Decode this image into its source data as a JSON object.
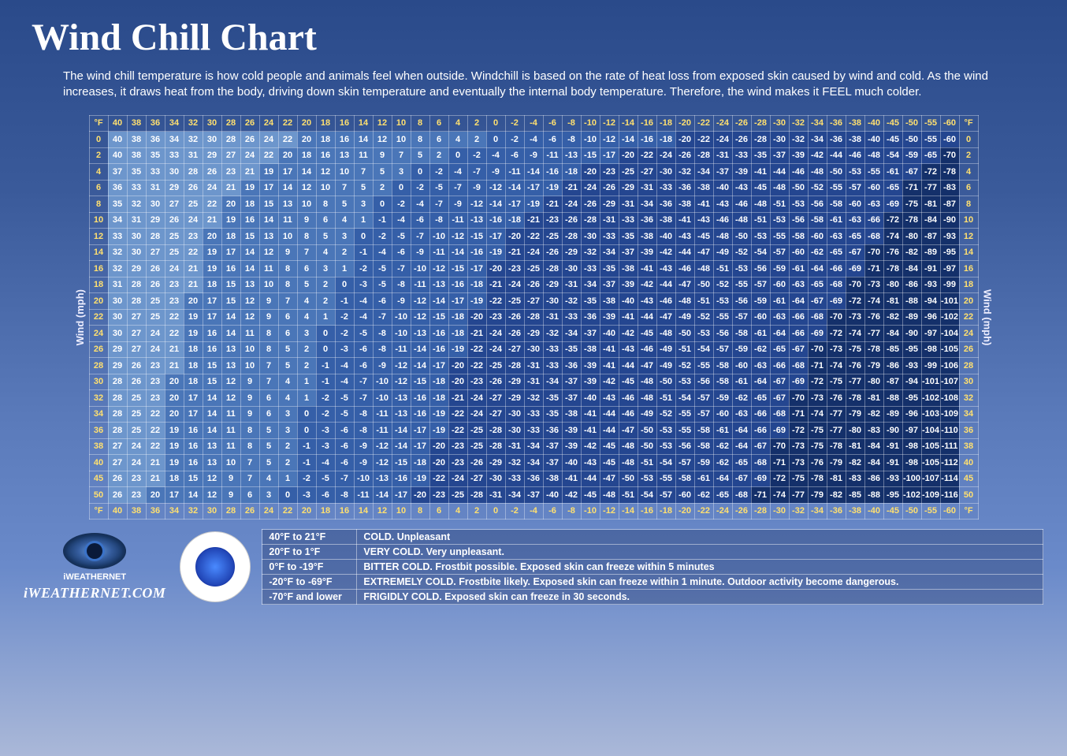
{
  "title": "Wind Chill Chart",
  "description": "The wind chill temperature is how cold people and animals feel when outside. Windchill is based on the rate of heat loss from exposed skin caused by wind and cold. As the wind increases, it draws heat from the body, driving down skin temperature and eventually the internal body temperature. Therefore, the wind makes it FEEL much colder.",
  "axis_wind_label": "Wind (mph)",
  "unit_label": "°F",
  "temps_header": [
    40,
    38,
    36,
    34,
    32,
    30,
    28,
    26,
    24,
    22,
    20,
    18,
    16,
    14,
    12,
    10,
    8,
    6,
    4,
    2,
    0,
    -2,
    -4,
    -6,
    -8,
    -10,
    -12,
    -14,
    -16,
    -18,
    -20,
    -22,
    -24,
    -26,
    -28,
    -30,
    -32,
    -34,
    -36,
    -38,
    -40,
    -45,
    -50,
    -55,
    -60
  ],
  "wind_speeds": [
    0,
    2,
    4,
    6,
    8,
    10,
    12,
    14,
    16,
    18,
    20,
    22,
    24,
    26,
    28,
    30,
    32,
    34,
    36,
    38,
    40,
    45,
    50
  ],
  "rows": [
    [
      40,
      38,
      36,
      34,
      32,
      30,
      28,
      26,
      24,
      22,
      20,
      18,
      16,
      14,
      12,
      10,
      8,
      6,
      4,
      2,
      0,
      -2,
      -4,
      -6,
      -8,
      -10,
      -12,
      -14,
      -16,
      -18,
      -20,
      -22,
      -24,
      -26,
      -28,
      -30,
      -32,
      -34,
      -36,
      -38,
      -40,
      -45,
      -50,
      -55,
      -60
    ],
    [
      40,
      38,
      35,
      33,
      31,
      29,
      27,
      24,
      22,
      20,
      18,
      16,
      13,
      11,
      9,
      7,
      5,
      2,
      0,
      -2,
      -4,
      -6,
      -9,
      -11,
      -13,
      -15,
      -17,
      -20,
      -22,
      -24,
      -26,
      -28,
      -31,
      -33,
      -35,
      -37,
      -39,
      -42,
      -44,
      -46,
      -48,
      -54,
      -59,
      -65,
      -70
    ],
    [
      37,
      35,
      33,
      30,
      28,
      26,
      23,
      21,
      19,
      17,
      14,
      12,
      10,
      7,
      5,
      3,
      0,
      -2,
      -4,
      -7,
      -9,
      -11,
      -14,
      -16,
      -18,
      -20,
      -23,
      -25,
      -27,
      -30,
      -32,
      -34,
      -37,
      -39,
      -41,
      -44,
      -46,
      -48,
      -50,
      -53,
      -55,
      -61,
      -67,
      -72,
      -78
    ],
    [
      36,
      33,
      31,
      29,
      26,
      24,
      21,
      19,
      17,
      14,
      12,
      10,
      7,
      5,
      2,
      0,
      -2,
      -5,
      -7,
      -9,
      -12,
      -14,
      -17,
      -19,
      -21,
      -24,
      -26,
      -29,
      -31,
      -33,
      -36,
      -38,
      -40,
      -43,
      -45,
      -48,
      -50,
      -52,
      -55,
      -57,
      -60,
      -65,
      -71,
      -77,
      -83
    ],
    [
      35,
      32,
      30,
      27,
      25,
      22,
      20,
      18,
      15,
      13,
      10,
      8,
      5,
      3,
      0,
      -2,
      -4,
      -7,
      -9,
      -12,
      -14,
      -17,
      -19,
      -21,
      -24,
      -26,
      -29,
      -31,
      -34,
      -36,
      -38,
      -41,
      -43,
      -46,
      -48,
      -51,
      -53,
      -56,
      -58,
      -60,
      -63,
      -69,
      -75,
      -81,
      -87
    ],
    [
      34,
      31,
      29,
      26,
      24,
      21,
      19,
      16,
      14,
      11,
      9,
      6,
      4,
      1,
      -1,
      -4,
      -6,
      -8,
      -11,
      -13,
      -16,
      -18,
      -21,
      -23,
      -26,
      -28,
      -31,
      -33,
      -36,
      -38,
      -41,
      -43,
      -46,
      -48,
      -51,
      -53,
      -56,
      -58,
      -61,
      -63,
      -66,
      -72,
      -78,
      -84,
      -90
    ],
    [
      33,
      30,
      28,
      25,
      23,
      20,
      18,
      15,
      13,
      10,
      8,
      5,
      3,
      0,
      -2,
      -5,
      -7,
      -10,
      -12,
      -15,
      -17,
      -20,
      -22,
      -25,
      -28,
      -30,
      -33,
      -35,
      -38,
      -40,
      -43,
      -45,
      -48,
      -50,
      -53,
      -55,
      -58,
      -60,
      -63,
      -65,
      -68,
      -74,
      -80,
      -87,
      -93
    ],
    [
      32,
      30,
      27,
      25,
      22,
      19,
      17,
      14,
      12,
      9,
      7,
      4,
      2,
      -1,
      -4,
      -6,
      -9,
      -11,
      -14,
      -16,
      -19,
      -21,
      -24,
      -26,
      -29,
      -32,
      -34,
      -37,
      -39,
      -42,
      -44,
      -47,
      -49,
      -52,
      -54,
      -57,
      -60,
      -62,
      -65,
      -67,
      -70,
      -76,
      -82,
      -89,
      -95
    ],
    [
      32,
      29,
      26,
      24,
      21,
      19,
      16,
      14,
      11,
      8,
      6,
      3,
      1,
      -2,
      -5,
      -7,
      -10,
      -12,
      -15,
      -17,
      -20,
      -23,
      -25,
      -28,
      -30,
      -33,
      -35,
      -38,
      -41,
      -43,
      -46,
      -48,
      -51,
      -53,
      -56,
      -59,
      -61,
      -64,
      -66,
      -69,
      -71,
      -78,
      -84,
      -91,
      -97
    ],
    [
      31,
      28,
      26,
      23,
      21,
      18,
      15,
      13,
      10,
      8,
      5,
      2,
      0,
      -3,
      -5,
      -8,
      -11,
      -13,
      -16,
      -18,
      -21,
      -24,
      -26,
      -29,
      -31,
      -34,
      -37,
      -39,
      -42,
      -44,
      -47,
      -50,
      -52,
      -55,
      -57,
      -60,
      -63,
      -65,
      -68,
      -70,
      -73,
      -80,
      -86,
      -93,
      -99
    ],
    [
      30,
      28,
      25,
      23,
      20,
      17,
      15,
      12,
      9,
      7,
      4,
      2,
      -1,
      -4,
      -6,
      -9,
      -12,
      -14,
      -17,
      -19,
      -22,
      -25,
      -27,
      -30,
      -32,
      -35,
      -38,
      -40,
      -43,
      -46,
      -48,
      -51,
      -53,
      -56,
      -59,
      -61,
      -64,
      -67,
      -69,
      -72,
      -74,
      -81,
      -88,
      -94,
      -101
    ],
    [
      30,
      27,
      25,
      22,
      19,
      17,
      14,
      12,
      9,
      6,
      4,
      1,
      -2,
      -4,
      -7,
      -10,
      -12,
      -15,
      -18,
      -20,
      -23,
      -26,
      -28,
      -31,
      -33,
      -36,
      -39,
      -41,
      -44,
      -47,
      -49,
      -52,
      -55,
      -57,
      -60,
      -63,
      -66,
      -68,
      -70,
      -73,
      -76,
      -82,
      -89,
      -96,
      -102
    ],
    [
      30,
      27,
      24,
      22,
      19,
      16,
      14,
      11,
      8,
      6,
      3,
      0,
      -2,
      -5,
      -8,
      -10,
      -13,
      -16,
      -18,
      -21,
      -24,
      -26,
      -29,
      -32,
      -34,
      -37,
      -40,
      -42,
      -45,
      -48,
      -50,
      -53,
      -56,
      -58,
      -61,
      -64,
      -66,
      -69,
      -72,
      -74,
      -77,
      -84,
      -90,
      -97,
      -104
    ],
    [
      29,
      27,
      24,
      21,
      18,
      16,
      13,
      10,
      8,
      5,
      2,
      0,
      -3,
      -6,
      -8,
      -11,
      -14,
      -16,
      -19,
      -22,
      -24,
      -27,
      -30,
      -33,
      -35,
      -38,
      -41,
      -43,
      -46,
      -49,
      -51,
      -54,
      -57,
      -59,
      -62,
      -65,
      -67,
      -70,
      -73,
      -75,
      -78,
      -85,
      -95,
      -98,
      -105
    ],
    [
      29,
      26,
      23,
      21,
      18,
      15,
      13,
      10,
      7,
      5,
      2,
      -1,
      -4,
      -6,
      -9,
      -12,
      -14,
      -17,
      -20,
      -22,
      -25,
      -28,
      -31,
      -33,
      -36,
      -39,
      -41,
      -44,
      -47,
      -49,
      -52,
      -55,
      -58,
      -60,
      -63,
      -66,
      -68,
      -71,
      -74,
      -76,
      -79,
      -86,
      -93,
      -99,
      -106
    ],
    [
      28,
      26,
      23,
      20,
      18,
      15,
      12,
      9,
      7,
      4,
      1,
      -1,
      -4,
      -7,
      -10,
      -12,
      -15,
      -18,
      -20,
      -23,
      -26,
      -29,
      -31,
      -34,
      -37,
      -39,
      -42,
      -45,
      -48,
      -50,
      -53,
      -56,
      -58,
      -61,
      -64,
      -67,
      -69,
      -72,
      -75,
      -77,
      -80,
      -87,
      -94,
      -101,
      -107
    ],
    [
      28,
      25,
      23,
      20,
      17,
      14,
      12,
      9,
      6,
      4,
      1,
      -2,
      -5,
      -7,
      -10,
      -13,
      -16,
      -18,
      -21,
      -24,
      -27,
      -29,
      -32,
      -35,
      -37,
      -40,
      -43,
      -46,
      -48,
      -51,
      -54,
      -57,
      -59,
      -62,
      -65,
      -67,
      -70,
      -73,
      -76,
      -78,
      -81,
      -88,
      -95,
      -102,
      -108
    ],
    [
      28,
      25,
      22,
      20,
      17,
      14,
      11,
      9,
      6,
      3,
      0,
      -2,
      -5,
      -8,
      -11,
      -13,
      -16,
      -19,
      -22,
      -24,
      -27,
      -30,
      -33,
      -35,
      -38,
      -41,
      -44,
      -46,
      -49,
      -52,
      -55,
      -57,
      -60,
      -63,
      -66,
      -68,
      -71,
      -74,
      -77,
      -79,
      -82,
      -89,
      -96,
      -103,
      -109
    ],
    [
      28,
      25,
      22,
      19,
      16,
      14,
      11,
      8,
      5,
      3,
      0,
      -3,
      -6,
      -8,
      -11,
      -14,
      -17,
      -19,
      -22,
      -25,
      -28,
      -30,
      -33,
      -36,
      -39,
      -41,
      -44,
      -47,
      -50,
      -53,
      -55,
      -58,
      -61,
      -64,
      -66,
      -69,
      -72,
      -75,
      -77,
      -80,
      -83,
      -90,
      -97,
      -104,
      -110
    ],
    [
      27,
      24,
      22,
      19,
      16,
      13,
      11,
      8,
      5,
      2,
      -1,
      -3,
      -6,
      -9,
      -12,
      -14,
      -17,
      -20,
      -23,
      -25,
      -28,
      -31,
      -34,
      -37,
      -39,
      -42,
      -45,
      -48,
      -50,
      -53,
      -56,
      -58,
      -62,
      -64,
      -67,
      -70,
      -73,
      -75,
      -78,
      -81,
      -84,
      -91,
      -98,
      -105,
      -111
    ],
    [
      27,
      24,
      21,
      19,
      16,
      13,
      10,
      7,
      5,
      2,
      -1,
      -4,
      -6,
      -9,
      -12,
      -15,
      -18,
      -20,
      -23,
      -26,
      -29,
      -32,
      -34,
      -37,
      -40,
      -43,
      -45,
      -48,
      -51,
      -54,
      -57,
      -59,
      -62,
      -65,
      -68,
      -71,
      -73,
      -76,
      -79,
      -82,
      -84,
      -91,
      -98,
      -105,
      -112
    ],
    [
      26,
      23,
      21,
      18,
      15,
      12,
      9,
      7,
      4,
      1,
      -2,
      -5,
      -7,
      -10,
      -13,
      -16,
      -19,
      -22,
      -24,
      -27,
      -30,
      -33,
      -36,
      -38,
      -41,
      -44,
      -47,
      -50,
      -53,
      -55,
      -58,
      -61,
      -64,
      -67,
      -69,
      -72,
      -75,
      -78,
      -81,
      -83,
      -86,
      -93,
      -100,
      -107,
      -114
    ],
    [
      26,
      23,
      20,
      17,
      14,
      12,
      9,
      6,
      3,
      0,
      -3,
      -6,
      -8,
      -11,
      -14,
      -17,
      -20,
      -23,
      -25,
      -28,
      -31,
      -34,
      -37,
      -40,
      -42,
      -45,
      -48,
      -51,
      -54,
      -57,
      -60,
      -62,
      -65,
      -68,
      -71,
      -74,
      -77,
      -79,
      -82,
      -85,
      -88,
      -95,
      -102,
      -109,
      -116
    ]
  ],
  "color_bands": [
    {
      "min": 21,
      "color": "#6d96cc"
    },
    {
      "min": 1,
      "color": "#4a76b8"
    },
    {
      "min": -19,
      "color": "#355fa8"
    },
    {
      "min": -69,
      "color": "#244690"
    },
    {
      "min": -999,
      "color": "#14306a"
    }
  ],
  "legend": [
    {
      "range": "40°F to 21°F",
      "desc": "COLD.  Unpleasant"
    },
    {
      "range": "20°F to 1°F",
      "desc": "VERY COLD. Very unpleasant."
    },
    {
      "range": "0°F to -19°F",
      "desc": "BITTER COLD.   Frostbit possible. Exposed skin can freeze within 5 minutes"
    },
    {
      "range": "-20°F to -69°F",
      "desc": "EXTREMELY COLD. Frostbite likely. Exposed skin can freeze within 1 minute. Outdoor activity become dangerous."
    },
    {
      "range": "-70°F and lower",
      "desc": "FRIGIDLY COLD. Exposed skin can freeze in 30 seconds."
    }
  ],
  "logo1_name": "iWEATHERNET",
  "logo1_url_text": "iWEATHERNET.COM",
  "header_color": "#ffe070",
  "border_color": "rgba(255,255,255,0.35)",
  "cell_fontsize": 11,
  "title_fontsize": 48,
  "desc_fontsize": 15
}
